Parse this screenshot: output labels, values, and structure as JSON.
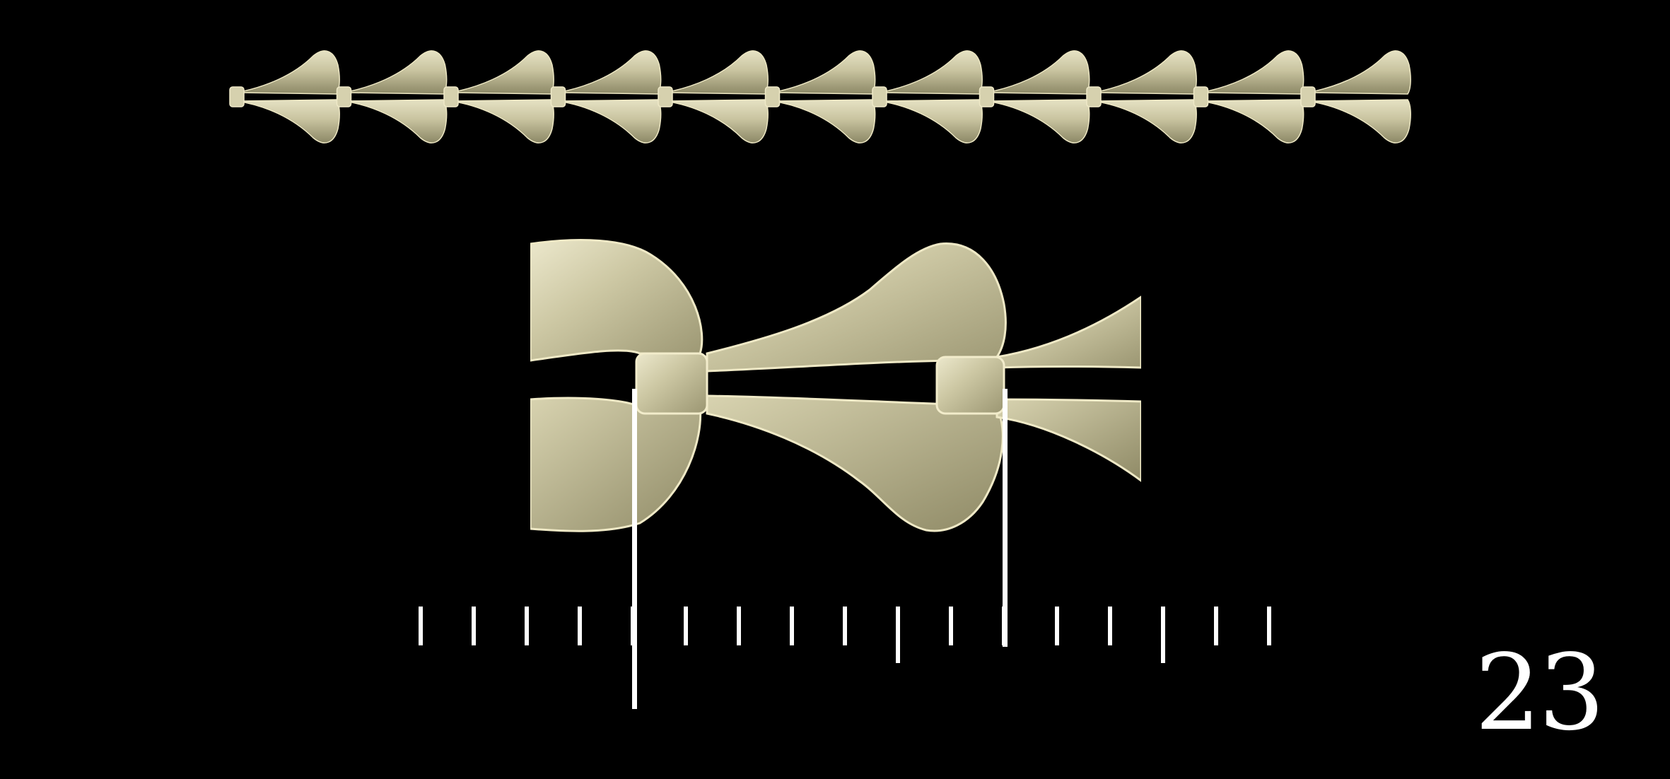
{
  "figure": {
    "page_number": "23",
    "background_color": "#000000",
    "metal_color": "#c9c4a0",
    "metal_highlight": "#e6e2c4",
    "metal_shadow": "#8c8866",
    "marker_color": "#ffffff",
    "top_strip": {
      "link_count": 11
    },
    "ruler": {
      "tick_count": 17
    }
  }
}
